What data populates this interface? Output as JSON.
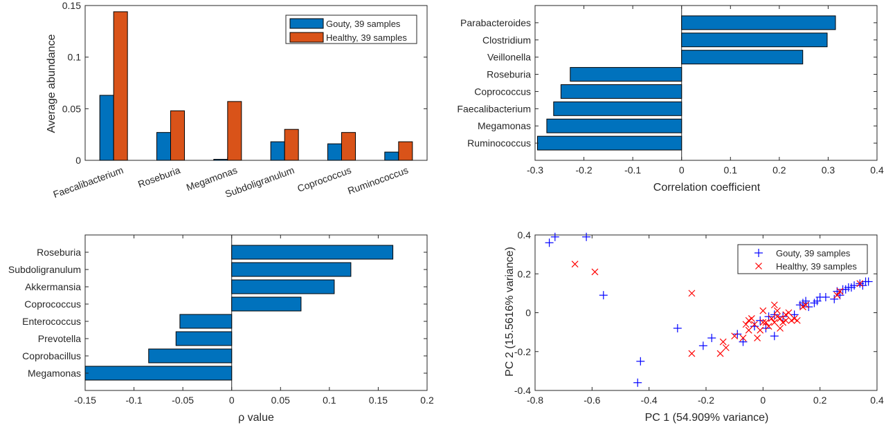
{
  "chart_data": [
    {
      "type": "bar",
      "categories": [
        "Faecalibacterium",
        "Roseburia",
        "Megamonas",
        "Subdoligranulum",
        "Coprococcus",
        "Ruminococcus"
      ],
      "series": [
        {
          "name": "Gouty, 39 samples",
          "values": [
            0.063,
            0.027,
            0.001,
            0.018,
            0.016,
            0.008
          ]
        },
        {
          "name": "Healthy, 39 samples",
          "values": [
            0.144,
            0.048,
            0.057,
            0.03,
            0.027,
            0.018
          ]
        }
      ],
      "title": "",
      "xlabel": "",
      "ylabel": "Average abundance",
      "ylim": [
        0,
        0.15
      ],
      "yticks": [
        "0",
        "0.05",
        "0.1",
        "0.15"
      ],
      "legend": "top-right",
      "colors": [
        "#0072BD",
        "#D95319"
      ]
    },
    {
      "type": "bar",
      "orientation": "horizontal",
      "categories": [
        "Parabacteroides",
        "Clostridium",
        "Veillonella",
        "Roseburia",
        "Coprococcus",
        "Faecalibacterium",
        "Megamonas",
        "Ruminococcus"
      ],
      "values": [
        0.315,
        0.298,
        0.248,
        -0.228,
        -0.247,
        -0.262,
        -0.276,
        -0.295
      ],
      "xlabel": "Correlation coefficient",
      "xlim": [
        -0.3,
        0.4
      ],
      "xticks": [
        "-0.3",
        "-0.2",
        "-0.1",
        "0",
        "0.1",
        "0.2",
        "0.3",
        "0.4"
      ],
      "color": "#0072BD"
    },
    {
      "type": "bar",
      "orientation": "horizontal",
      "categories": [
        "Roseburia",
        "Subdoligranulum",
        "Akkermansia",
        "Coprococcus",
        "Enterococcus",
        "Prevotella",
        "Coprobacillus",
        "Megamonas"
      ],
      "values": [
        0.165,
        0.122,
        0.105,
        0.071,
        -0.053,
        -0.057,
        -0.085,
        -0.15
      ],
      "xlabel": "ρ value",
      "xlim": [
        -0.15,
        0.2
      ],
      "xticks": [
        "-0.15",
        "-0.1",
        "-0.05",
        "0",
        "0.05",
        "0.1",
        "0.15",
        "0.2"
      ],
      "color": "#0072BD"
    },
    {
      "type": "scatter",
      "xlabel": "PC 1 (54.909% variance)",
      "ylabel": "PC 2 (15.5616% variance)",
      "xlim": [
        -0.8,
        0.4
      ],
      "ylim": [
        -0.4,
        0.4
      ],
      "xticks": [
        "-0.8",
        "-0.6",
        "-0.4",
        "-0.2",
        "0",
        "0.2",
        "0.4"
      ],
      "yticks": [
        "-0.4",
        "-0.2",
        "0",
        "0.2",
        "0.4"
      ],
      "legend": "top-right",
      "series": [
        {
          "name": "Gouty, 39 samples",
          "marker": "+",
          "color": "#0000FF",
          "points": [
            [
              -0.75,
              0.36
            ],
            [
              -0.73,
              0.39
            ],
            [
              -0.62,
              0.39
            ],
            [
              -0.56,
              0.09
            ],
            [
              -0.43,
              -0.25
            ],
            [
              -0.44,
              -0.36
            ],
            [
              -0.3,
              -0.08
            ],
            [
              -0.21,
              -0.17
            ],
            [
              -0.18,
              -0.13
            ],
            [
              -0.09,
              -0.11
            ],
            [
              -0.07,
              -0.15
            ],
            [
              -0.03,
              -0.07
            ],
            [
              -0.01,
              -0.04
            ],
            [
              0.04,
              -0.12
            ],
            [
              0.04,
              -0.01
            ],
            [
              0.07,
              -0.02
            ],
            [
              0.11,
              -0.01
            ],
            [
              0.13,
              0.04
            ],
            [
              0.14,
              0.05
            ],
            [
              0.15,
              0.06
            ],
            [
              0.16,
              0.03
            ],
            [
              0.18,
              0.05
            ],
            [
              0.19,
              0.06
            ],
            [
              0.2,
              0.08
            ],
            [
              0.22,
              0.08
            ],
            [
              0.25,
              0.07
            ],
            [
              0.26,
              0.11
            ],
            [
              0.27,
              0.09
            ],
            [
              0.28,
              0.12
            ],
            [
              0.29,
              0.12
            ],
            [
              0.3,
              0.13
            ],
            [
              0.31,
              0.13
            ],
            [
              0.32,
              0.14
            ],
            [
              0.34,
              0.15
            ],
            [
              0.35,
              0.14
            ],
            [
              0.36,
              0.16
            ],
            [
              0.37,
              0.16
            ],
            [
              0.01,
              -0.08
            ],
            [
              0.02,
              -0.02
            ]
          ]
        },
        {
          "name": "Healthy, 39 samples",
          "marker": "x",
          "color": "#FF0000",
          "points": [
            [
              -0.66,
              0.25
            ],
            [
              -0.59,
              0.21
            ],
            [
              -0.25,
              0.1
            ],
            [
              -0.25,
              -0.21
            ],
            [
              -0.15,
              -0.21
            ],
            [
              -0.14,
              -0.15
            ],
            [
              -0.13,
              -0.18
            ],
            [
              -0.1,
              -0.12
            ],
            [
              -0.07,
              -0.13
            ],
            [
              -0.06,
              -0.06
            ],
            [
              -0.05,
              -0.04
            ],
            [
              -0.05,
              -0.09
            ],
            [
              -0.04,
              -0.03
            ],
            [
              -0.03,
              -0.06
            ],
            [
              -0.02,
              -0.13
            ],
            [
              -0.01,
              -0.09
            ],
            [
              0.0,
              -0.05
            ],
            [
              0.0,
              0.01
            ],
            [
              0.01,
              -0.05
            ],
            [
              0.02,
              -0.07
            ],
            [
              0.03,
              -0.03
            ],
            [
              0.04,
              -0.05
            ],
            [
              0.04,
              0.04
            ],
            [
              0.05,
              -0.02
            ],
            [
              0.05,
              0.01
            ],
            [
              0.06,
              -0.03
            ],
            [
              0.06,
              -0.08
            ],
            [
              0.07,
              -0.05
            ],
            [
              0.08,
              -0.04
            ],
            [
              0.08,
              -0.01
            ],
            [
              0.09,
              0.0
            ],
            [
              0.1,
              -0.04
            ],
            [
              0.11,
              -0.03
            ],
            [
              0.12,
              -0.04
            ],
            [
              0.14,
              0.03
            ],
            [
              0.15,
              0.04
            ],
            [
              0.26,
              0.09
            ],
            [
              0.27,
              0.11
            ],
            [
              0.34,
              0.15
            ]
          ]
        }
      ]
    }
  ]
}
